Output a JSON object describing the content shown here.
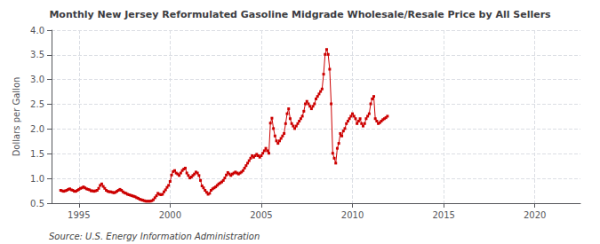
{
  "chart_data": {
    "type": "line",
    "title": "Monthly New Jersey Reformulated Gasoline Midgrade Wholesale/Resale Price by All Sellers",
    "ylabel": "Dollars per Gallon",
    "annotations": [
      "Source: U.S. Energy Information Administration"
    ],
    "color": "#cc0000",
    "marker": "square",
    "grid": true,
    "xlim": [
      1993.5,
      2022.5
    ],
    "xticks": [
      1995,
      2000,
      2005,
      2010,
      2015,
      2020
    ],
    "ylim": [
      0.5,
      4.0
    ],
    "yticks": [
      0.5,
      {
        "value": 1.0,
        "label": "1.0"
      },
      1.5,
      {
        "value": 2.0,
        "label": "2.0"
      },
      2.5,
      {
        "value": 3.0,
        "label": "3.0"
      },
      3.5,
      {
        "value": 4.0,
        "label": "4.0"
      }
    ],
    "x": [
      1994.0,
      1994.083,
      1994.167,
      1994.25,
      1994.333,
      1994.417,
      1994.5,
      1994.583,
      1994.667,
      1994.75,
      1994.833,
      1994.917,
      1995.0,
      1995.083,
      1995.167,
      1995.25,
      1995.333,
      1995.417,
      1995.5,
      1995.583,
      1995.667,
      1995.75,
      1995.833,
      1995.917,
      1996.0,
      1996.083,
      1996.167,
      1996.25,
      1996.333,
      1996.417,
      1996.5,
      1996.583,
      1996.667,
      1996.75,
      1996.833,
      1996.917,
      1997.0,
      1997.083,
      1997.167,
      1997.25,
      1997.333,
      1997.417,
      1997.5,
      1997.583,
      1997.667,
      1997.75,
      1997.833,
      1997.917,
      1998.0,
      1998.083,
      1998.167,
      1998.25,
      1998.333,
      1998.417,
      1998.5,
      1998.583,
      1998.667,
      1998.75,
      1998.833,
      1998.917,
      1999.0,
      1999.083,
      1999.167,
      1999.25,
      1999.333,
      1999.417,
      1999.5,
      1999.583,
      1999.667,
      1999.75,
      1999.833,
      1999.917,
      2000.0,
      2000.083,
      2000.167,
      2000.25,
      2000.333,
      2000.417,
      2000.5,
      2000.583,
      2000.667,
      2000.75,
      2000.833,
      2000.917,
      2001.0,
      2001.083,
      2001.167,
      2001.25,
      2001.333,
      2001.417,
      2001.5,
      2001.583,
      2001.667,
      2001.75,
      2001.833,
      2001.917,
      2002.0,
      2002.083,
      2002.167,
      2002.25,
      2002.333,
      2002.417,
      2002.5,
      2002.583,
      2002.667,
      2002.75,
      2002.833,
      2002.917,
      2003.0,
      2003.083,
      2003.167,
      2003.25,
      2003.333,
      2003.417,
      2003.5,
      2003.583,
      2003.667,
      2003.75,
      2003.833,
      2003.917,
      2004.0,
      2004.083,
      2004.167,
      2004.25,
      2004.333,
      2004.417,
      2004.5,
      2004.583,
      2004.667,
      2004.75,
      2004.833,
      2004.917,
      2005.0,
      2005.083,
      2005.167,
      2005.25,
      2005.333,
      2005.417,
      2005.5,
      2005.583,
      2005.667,
      2005.75,
      2005.833,
      2005.917,
      2006.0,
      2006.083,
      2006.167,
      2006.25,
      2006.333,
      2006.417,
      2006.5,
      2006.583,
      2006.667,
      2006.75,
      2006.833,
      2006.917,
      2007.0,
      2007.083,
      2007.167,
      2007.25,
      2007.333,
      2007.417,
      2007.5,
      2007.583,
      2007.667,
      2007.75,
      2007.833,
      2007.917,
      2008.0,
      2008.083,
      2008.167,
      2008.25,
      2008.333,
      2008.417,
      2008.5,
      2008.583,
      2008.667,
      2008.75,
      2008.833,
      2008.917,
      2009.0,
      2009.083,
      2009.167,
      2009.25,
      2009.333,
      2009.417,
      2009.5,
      2009.583,
      2009.667,
      2009.75,
      2009.833,
      2009.917,
      2010.0,
      2010.083,
      2010.167,
      2010.25,
      2010.333,
      2010.417,
      2010.5,
      2010.583,
      2010.667,
      2010.75,
      2010.833,
      2010.917,
      2011.0,
      2011.083,
      2011.167,
      2011.25,
      2011.333,
      2011.417,
      2011.5,
      2011.583,
      2011.667,
      2011.75,
      2011.833,
      2011.917
    ],
    "values": [
      0.76,
      0.75,
      0.74,
      0.75,
      0.76,
      0.78,
      0.79,
      0.77,
      0.76,
      0.74,
      0.74,
      0.76,
      0.78,
      0.8,
      0.81,
      0.83,
      0.81,
      0.79,
      0.78,
      0.77,
      0.75,
      0.75,
      0.74,
      0.75,
      0.76,
      0.8,
      0.86,
      0.89,
      0.84,
      0.8,
      0.76,
      0.74,
      0.73,
      0.73,
      0.72,
      0.71,
      0.72,
      0.74,
      0.76,
      0.78,
      0.76,
      0.73,
      0.71,
      0.7,
      0.68,
      0.67,
      0.66,
      0.65,
      0.64,
      0.63,
      0.61,
      0.6,
      0.58,
      0.57,
      0.56,
      0.55,
      0.54,
      0.54,
      0.54,
      0.54,
      0.55,
      0.57,
      0.61,
      0.65,
      0.7,
      0.68,
      0.67,
      0.68,
      0.73,
      0.77,
      0.82,
      0.86,
      0.94,
      1.07,
      1.14,
      1.16,
      1.11,
      1.09,
      1.06,
      1.11,
      1.16,
      1.19,
      1.21,
      1.11,
      1.06,
      1.01,
      1.03,
      1.06,
      1.09,
      1.13,
      1.11,
      1.06,
      0.96,
      0.85,
      0.81,
      0.76,
      0.72,
      0.68,
      0.7,
      0.76,
      0.79,
      0.81,
      0.83,
      0.86,
      0.89,
      0.91,
      0.93,
      0.96,
      1.01,
      1.07,
      1.12,
      1.09,
      1.06,
      1.09,
      1.11,
      1.13,
      1.11,
      1.09,
      1.11,
      1.13,
      1.16,
      1.21,
      1.26,
      1.31,
      1.36,
      1.41,
      1.46,
      1.43,
      1.46,
      1.49,
      1.46,
      1.43,
      1.46,
      1.51,
      1.56,
      1.61,
      1.56,
      1.51,
      2.12,
      2.22,
      2.01,
      1.86,
      1.76,
      1.71,
      1.76,
      1.81,
      1.86,
      1.91,
      2.11,
      2.31,
      2.41,
      2.21,
      2.11,
      2.06,
      2.01,
      2.06,
      2.11,
      2.16,
      2.21,
      2.26,
      2.36,
      2.51,
      2.56,
      2.51,
      2.46,
      2.41,
      2.46,
      2.51,
      2.61,
      2.66,
      2.71,
      2.76,
      2.81,
      3.11,
      3.51,
      3.61,
      3.51,
      3.21,
      2.51,
      1.51,
      1.41,
      1.31,
      1.61,
      1.71,
      1.91,
      1.86,
      1.96,
      2.01,
      2.11,
      2.16,
      2.21,
      2.26,
      2.31,
      2.26,
      2.21,
      2.11,
      2.16,
      2.21,
      2.11,
      2.06,
      2.11,
      2.21,
      2.26,
      2.31,
      2.51,
      2.61,
      2.66,
      2.21,
      2.16,
      2.11,
      2.13,
      2.16,
      2.19,
      2.21,
      2.23,
      2.26
    ]
  }
}
